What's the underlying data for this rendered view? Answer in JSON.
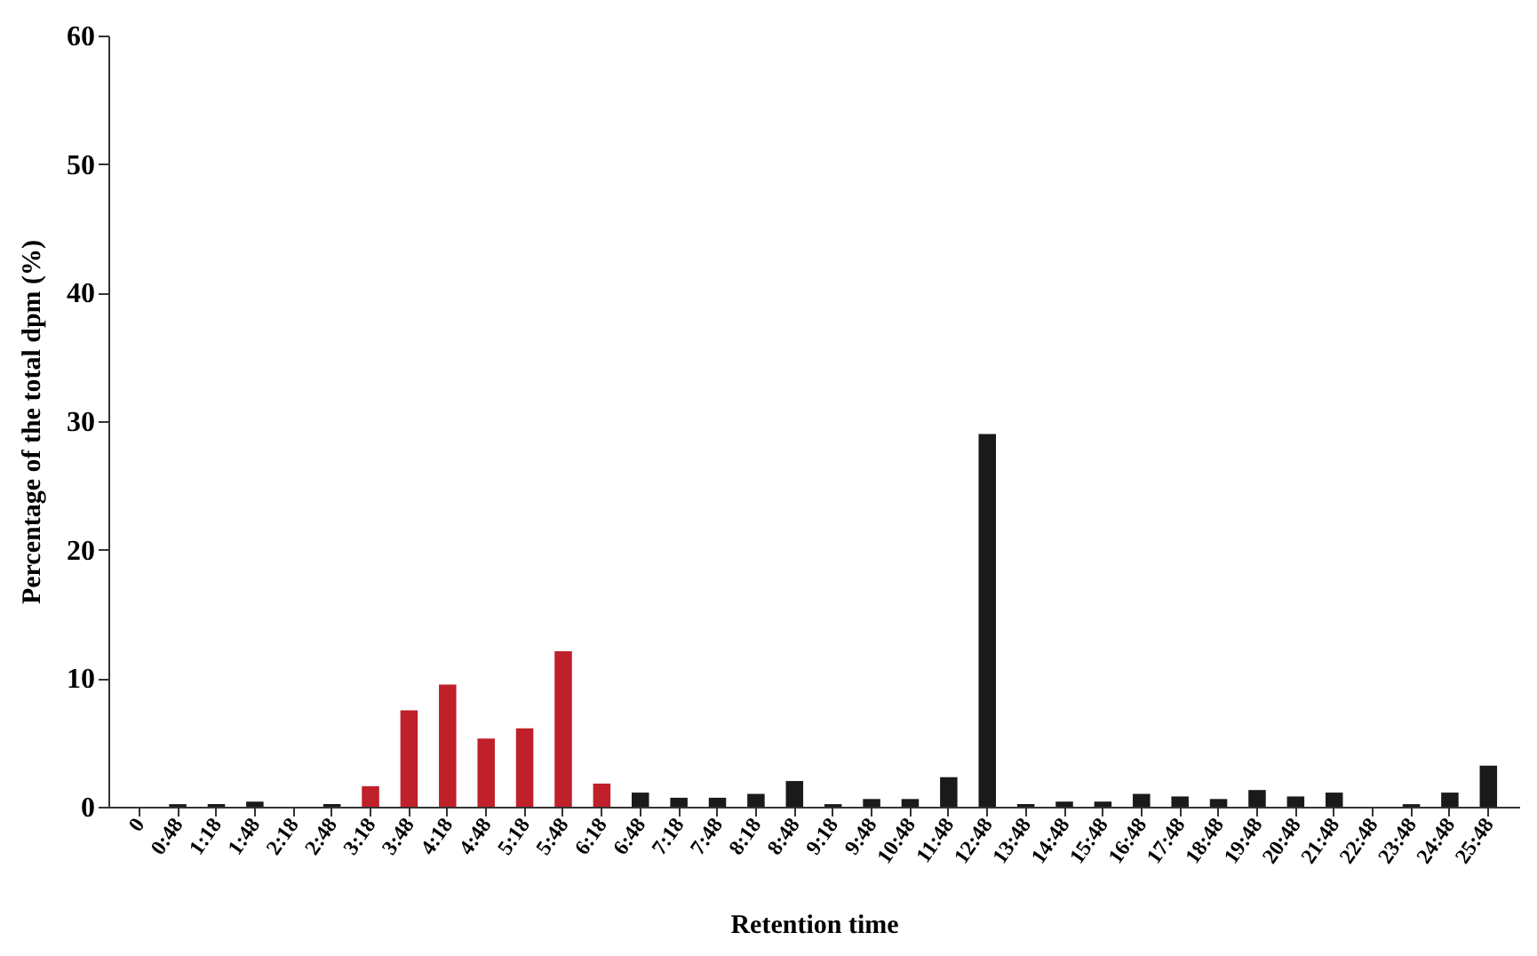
{
  "chart_data": {
    "type": "bar",
    "xlabel": "Retention time",
    "ylabel": "Percentage of the total dpm (%)",
    "categories": [
      "0",
      "0:48",
      "1:18",
      "1:48",
      "2:18",
      "2:48",
      "3:18",
      "3:48",
      "4:18",
      "4:48",
      "5:18",
      "5:48",
      "6:18",
      "6:48",
      "7:18",
      "7:48",
      "8:18",
      "8:48",
      "9:18",
      "9:48",
      "10:48",
      "11:48",
      "12:48",
      "13:48",
      "14:48",
      "15:48",
      "16:48",
      "17:48",
      "18:48",
      "19:48",
      "20:48",
      "21:48",
      "22:48",
      "23:48",
      "24:48",
      "25:48"
    ],
    "values": [
      0,
      0.2,
      0.2,
      0.4,
      0,
      0.2,
      1.6,
      7.5,
      9.5,
      5.3,
      6.1,
      12.1,
      1.8,
      1.1,
      0.7,
      0.7,
      1.0,
      2.0,
      0.2,
      0.6,
      0.6,
      2.3,
      29,
      0.2,
      0.4,
      0.4,
      1.0,
      0.8,
      0.6,
      1.3,
      0.8,
      1.1,
      0,
      0.2,
      1.1,
      3.2
    ],
    "colors": [
      "#1a1a1a",
      "#1a1a1a",
      "#1a1a1a",
      "#1a1a1a",
      "#1a1a1a",
      "#1a1a1a",
      "#c0202a",
      "#c0202a",
      "#c0202a",
      "#c0202a",
      "#c0202a",
      "#c0202a",
      "#c0202a",
      "#1a1a1a",
      "#1a1a1a",
      "#1a1a1a",
      "#1a1a1a",
      "#1a1a1a",
      "#1a1a1a",
      "#1a1a1a",
      "#1a1a1a",
      "#1a1a1a",
      "#1a1a1a",
      "#1a1a1a",
      "#1a1a1a",
      "#1a1a1a",
      "#1a1a1a",
      "#1a1a1a",
      "#1a1a1a",
      "#1a1a1a",
      "#1a1a1a",
      "#1a1a1a",
      "#1a1a1a",
      "#1a1a1a",
      "#1a1a1a",
      "#1a1a1a"
    ],
    "ylim": [
      0,
      60
    ],
    "yticks": [
      0,
      10,
      20,
      30,
      40,
      50,
      60
    ],
    "grid": false
  }
}
